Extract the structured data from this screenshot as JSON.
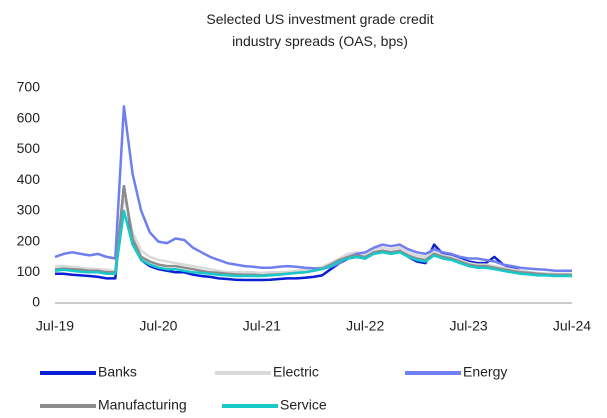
{
  "chart_data": {
    "type": "line",
    "title": "Selected US investment grade credit industry spreads (OAS, bps)",
    "categories": [
      "Jul-19",
      null,
      null,
      null,
      null,
      null,
      null,
      null,
      null,
      null,
      null,
      null,
      "Jul-20",
      null,
      null,
      null,
      null,
      null,
      null,
      null,
      null,
      null,
      null,
      null,
      "Jul-21",
      null,
      null,
      null,
      null,
      null,
      null,
      null,
      null,
      null,
      null,
      null,
      "Jul-22",
      null,
      null,
      null,
      null,
      null,
      null,
      null,
      null,
      null,
      null,
      null,
      "Jul-23",
      null,
      null,
      null,
      null,
      null,
      null,
      null,
      null,
      null,
      null,
      null,
      "Jul-24"
    ],
    "series": [
      {
        "name": "Banks",
        "color": "#0a1fd6",
        "values": [
          95,
          95,
          92,
          90,
          88,
          85,
          80,
          80,
          380,
          200,
          140,
          120,
          110,
          105,
          100,
          100,
          92,
          88,
          85,
          80,
          78,
          76,
          75,
          75,
          75,
          76,
          78,
          80,
          80,
          82,
          85,
          90,
          110,
          130,
          145,
          150,
          145,
          165,
          170,
          165,
          170,
          150,
          135,
          130,
          190,
          160,
          155,
          145,
          135,
          130,
          130,
          150,
          125,
          115,
          105,
          100,
          97,
          95,
          93,
          92,
          92
        ]
      },
      {
        "name": "Electric",
        "color": "#d9d9d9",
        "values": [
          120,
          120,
          118,
          115,
          112,
          110,
          108,
          105,
          350,
          230,
          170,
          150,
          140,
          135,
          130,
          125,
          120,
          115,
          110,
          105,
          100,
          100,
          100,
          100,
          98,
          100,
          100,
          102,
          105,
          108,
          112,
          118,
          130,
          145,
          160,
          165,
          160,
          175,
          180,
          175,
          180,
          165,
          155,
          150,
          165,
          155,
          150,
          140,
          130,
          125,
          125,
          120,
          115,
          110,
          105,
          100,
          98,
          96,
          95,
          95,
          95
        ]
      },
      {
        "name": "Energy",
        "color": "#6f7ff0",
        "values": [
          150,
          160,
          165,
          160,
          155,
          160,
          150,
          145,
          640,
          420,
          300,
          230,
          200,
          195,
          210,
          205,
          180,
          165,
          150,
          140,
          130,
          125,
          120,
          118,
          115,
          115,
          118,
          120,
          118,
          115,
          113,
          112,
          118,
          130,
          150,
          160,
          165,
          180,
          190,
          185,
          190,
          175,
          165,
          160,
          175,
          165,
          160,
          150,
          145,
          145,
          140,
          135,
          125,
          120,
          115,
          112,
          110,
          108,
          105,
          105,
          105
        ]
      },
      {
        "name": "Manufacturing",
        "color": "#8c8c8c",
        "values": [
          110,
          112,
          110,
          108,
          105,
          105,
          100,
          100,
          380,
          210,
          150,
          135,
          125,
          120,
          120,
          115,
          110,
          105,
          100,
          98,
          95,
          93,
          92,
          92,
          90,
          92,
          93,
          95,
          98,
          100,
          105,
          112,
          125,
          140,
          150,
          155,
          150,
          165,
          170,
          165,
          170,
          155,
          145,
          140,
          160,
          150,
          145,
          135,
          125,
          120,
          120,
          115,
          110,
          105,
          100,
          98,
          95,
          93,
          92,
          92,
          92
        ]
      },
      {
        "name": "Service",
        "color": "#19c8c8",
        "values": [
          105,
          108,
          105,
          102,
          100,
          100,
          95,
          95,
          300,
          190,
          140,
          125,
          115,
          110,
          110,
          105,
          100,
          98,
          95,
          92,
          90,
          88,
          88,
          88,
          88,
          90,
          92,
          95,
          98,
          100,
          105,
          110,
          120,
          135,
          145,
          150,
          145,
          160,
          165,
          160,
          165,
          150,
          140,
          135,
          155,
          145,
          140,
          130,
          120,
          115,
          115,
          110,
          105,
          100,
          95,
          93,
          90,
          90,
          88,
          88,
          88
        ]
      }
    ],
    "ylim": [
      0,
      700
    ],
    "yticks": [
      0,
      100,
      200,
      300,
      400,
      500,
      600,
      700
    ],
    "grid": false
  }
}
